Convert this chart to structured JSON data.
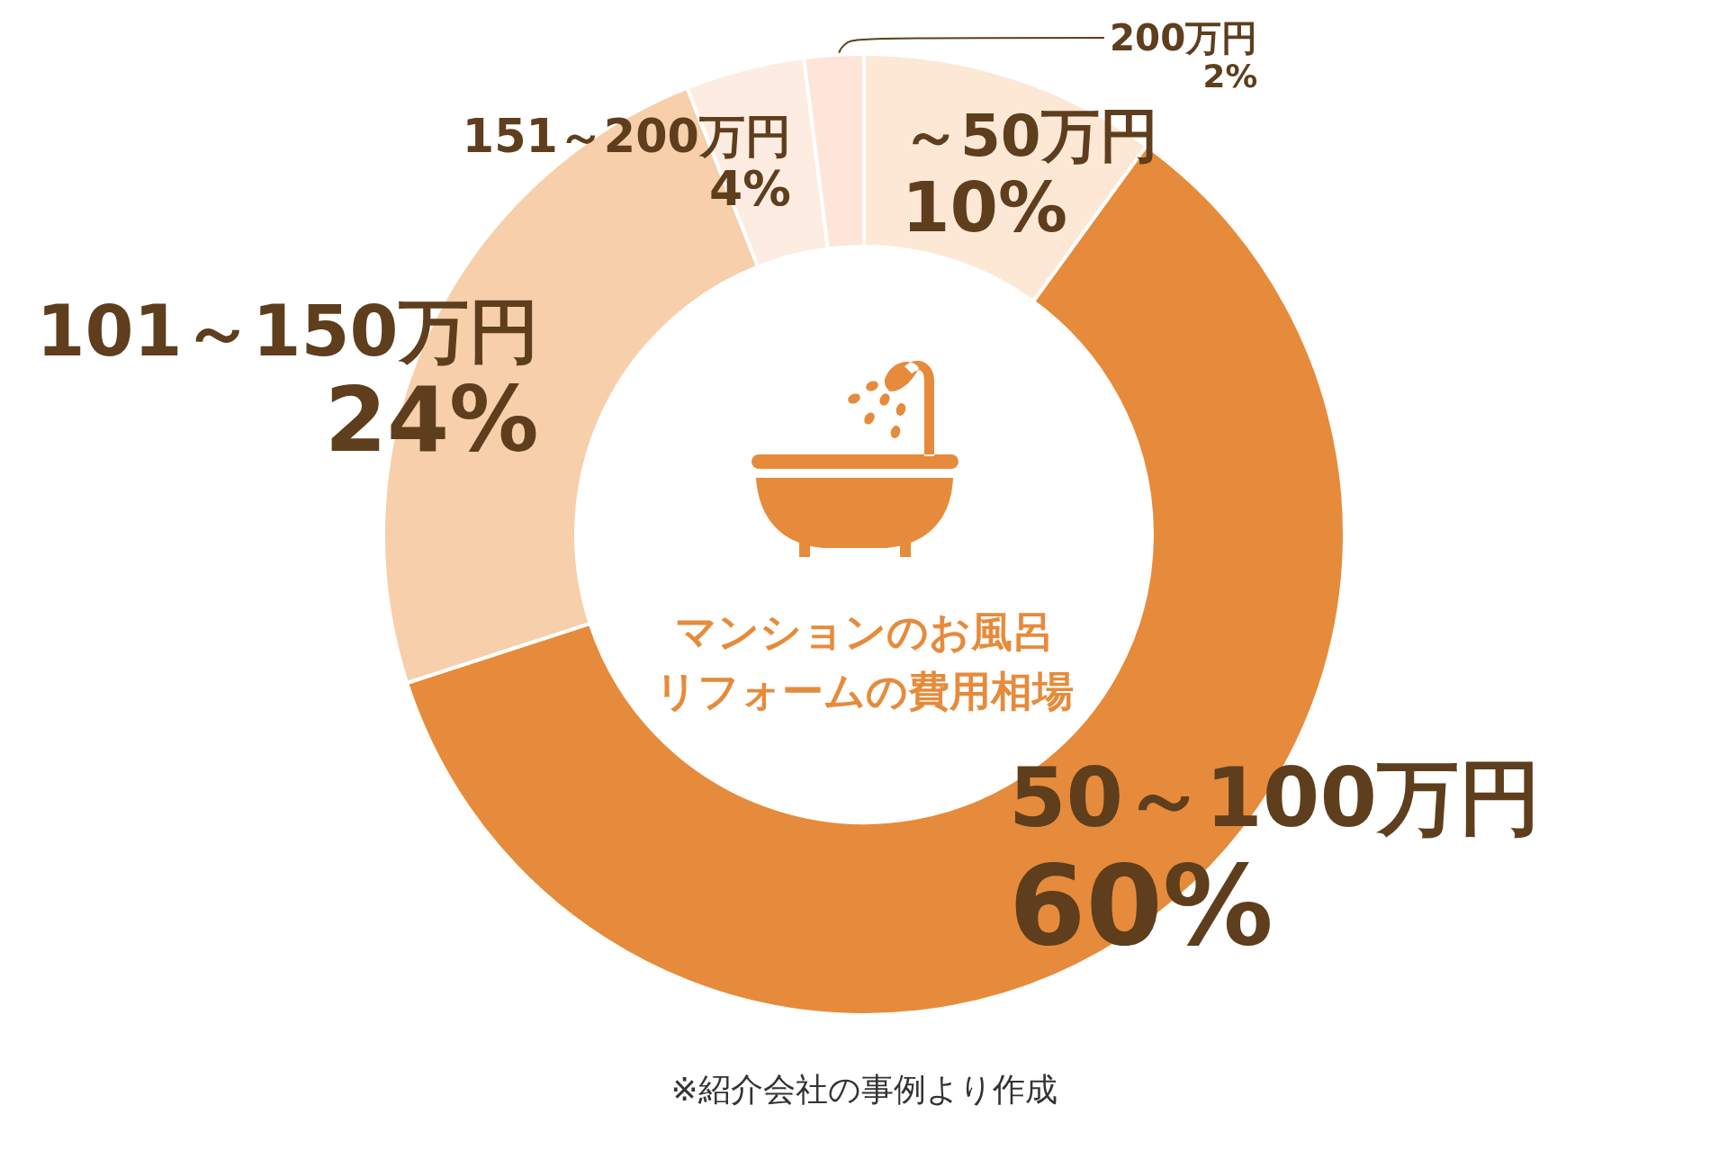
{
  "chart_data": {
    "type": "donut",
    "title": "マンションのお風呂リフォームの費用相場",
    "categories": [
      "～50万円",
      "50～100万円",
      "101～150万円",
      "151～200万円",
      "200万円"
    ],
    "values": [
      10,
      60,
      24,
      4,
      2
    ],
    "colors": [
      "#fde7d5",
      "#e68b3b",
      "#f7cfaa",
      "#fdece1",
      "#fde6d9"
    ],
    "value_labels": [
      "10%",
      "60%",
      "24%",
      "4%",
      "2%"
    ],
    "annotations": [
      "※紹介会社の事例より作成"
    ]
  }
}
